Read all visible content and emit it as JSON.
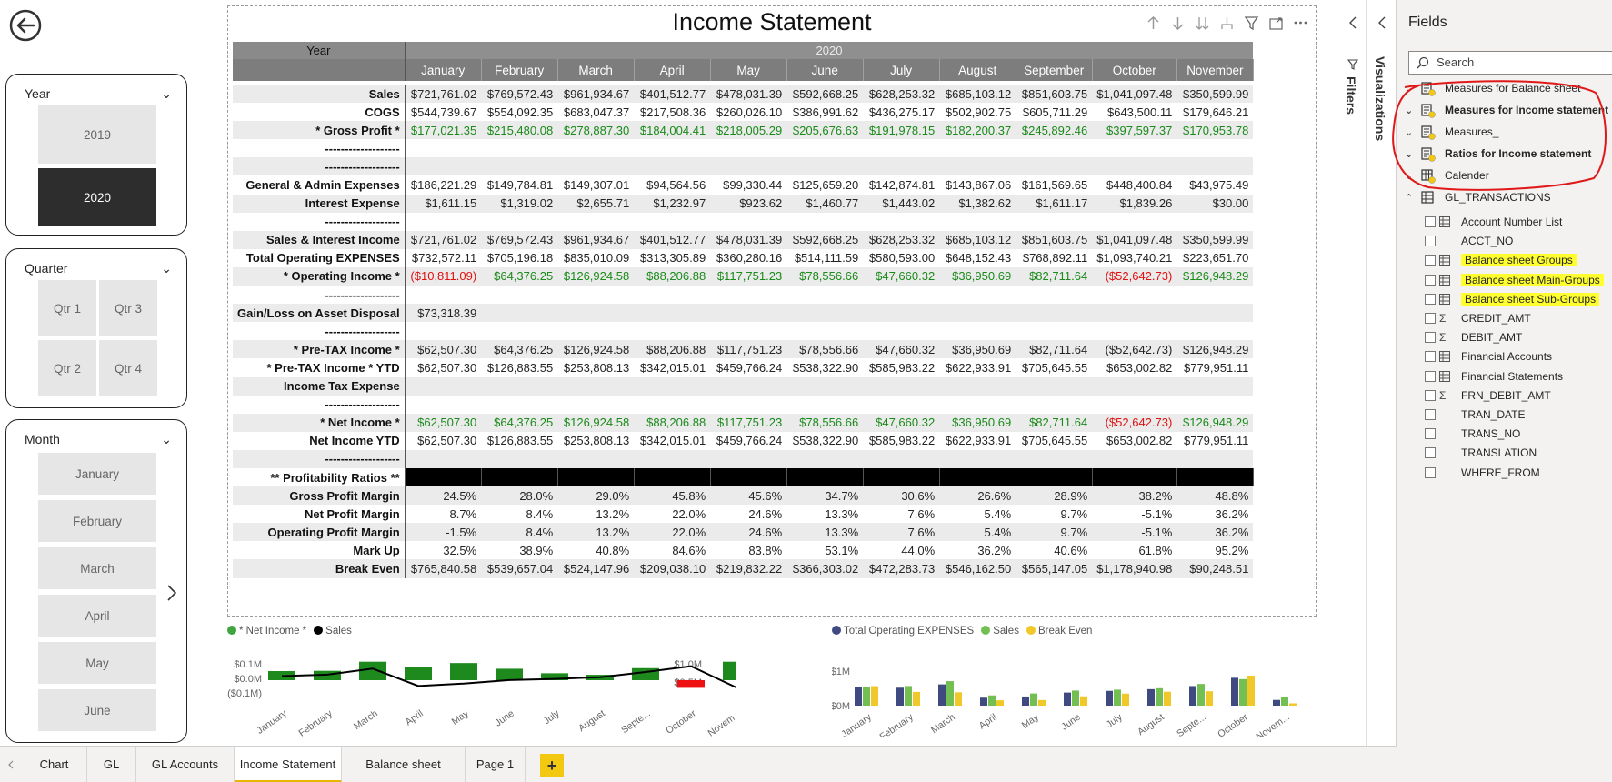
{
  "report": {
    "title": "Income Statement",
    "matrix": {
      "year_header": "Year",
      "year_value": "2020",
      "months": [
        "January",
        "February",
        "March",
        "April",
        "May",
        "June",
        "July",
        "August",
        "September",
        "October",
        "November"
      ],
      "rows": [
        {
          "label": "Sales",
          "style": "alt",
          "values": [
            "$721,761.02",
            "$769,572.43",
            "$961,934.67",
            "$401,512.77",
            "$478,031.39",
            "$592,668.25",
            "$628,253.32",
            "$685,103.12",
            "$851,603.75",
            "$1,041,097.48",
            "$350,599.99"
          ]
        },
        {
          "label": "COGS",
          "style": "",
          "values": [
            "$544,739.67",
            "$554,092.35",
            "$683,047.37",
            "$217,508.36",
            "$260,026.10",
            "$386,991.62",
            "$436,275.17",
            "$502,902.75",
            "$605,711.29",
            "$643,500.11",
            "$179,646.21"
          ]
        },
        {
          "label": "* Gross Profit *",
          "style": "alt",
          "color": "green",
          "values": [
            "$177,021.35",
            "$215,480.08",
            "$278,887.30",
            "$184,004.41",
            "$218,005.29",
            "$205,676.63",
            "$191,978.15",
            "$182,200.37",
            "$245,892.46",
            "$397,597.37",
            "$170,953.78"
          ]
        },
        {
          "label": "-------------------",
          "style": "",
          "values": [
            "",
            "",
            "",
            "",
            "",
            "",
            "",
            "",
            "",
            "",
            ""
          ]
        },
        {
          "label": "-------------------",
          "style": "alt",
          "values": [
            "",
            "",
            "",
            "",
            "",
            "",
            "",
            "",
            "",
            "",
            ""
          ]
        },
        {
          "label": "General & Admin Expenses",
          "style": "",
          "values": [
            "$186,221.29",
            "$149,784.81",
            "$149,307.01",
            "$94,564.56",
            "$99,330.44",
            "$125,659.20",
            "$142,874.81",
            "$143,867.06",
            "$161,569.65",
            "$448,400.84",
            "$43,975.49"
          ]
        },
        {
          "label": "Interest Expense",
          "style": "alt",
          "values": [
            "$1,611.15",
            "$1,319.02",
            "$2,655.71",
            "$1,232.97",
            "$923.62",
            "$1,460.77",
            "$1,443.02",
            "$1,382.62",
            "$1,611.17",
            "$1,839.26",
            "$30.00"
          ]
        },
        {
          "label": "-------------------",
          "style": "",
          "values": [
            "",
            "",
            "",
            "",
            "",
            "",
            "",
            "",
            "",
            "",
            ""
          ]
        },
        {
          "label": "Sales & Interest Income",
          "style": "alt",
          "values": [
            "$721,761.02",
            "$769,572.43",
            "$961,934.67",
            "$401,512.77",
            "$478,031.39",
            "$592,668.25",
            "$628,253.32",
            "$685,103.12",
            "$851,603.75",
            "$1,041,097.48",
            "$350,599.99"
          ]
        },
        {
          "label": "Total Operating EXPENSES",
          "style": "",
          "values": [
            "$732,572.11",
            "$705,196.18",
            "$835,010.09",
            "$313,305.89",
            "$360,280.16",
            "$514,111.59",
            "$580,593.00",
            "$648,152.43",
            "$768,892.11",
            "$1,093,740.21",
            "$223,651.70"
          ]
        },
        {
          "label": "* Operating Income *",
          "style": "alt",
          "color": "green",
          "neg": [
            0,
            9
          ],
          "values": [
            "($10,811.09)",
            "$64,376.25",
            "$126,924.58",
            "$88,206.88",
            "$117,751.23",
            "$78,556.66",
            "$47,660.32",
            "$36,950.69",
            "$82,711.64",
            "($52,642.73)",
            "$126,948.29"
          ]
        },
        {
          "label": "-------------------",
          "style": "",
          "values": [
            "",
            "",
            "",
            "",
            "",
            "",
            "",
            "",
            "",
            "",
            ""
          ]
        },
        {
          "label": "Gain/Loss on Asset Disposal",
          "style": "alt",
          "values": [
            "$73,318.39",
            "",
            "",
            "",
            "",
            "",
            "",
            "",
            "",
            "",
            ""
          ]
        },
        {
          "label": "-------------------",
          "style": "",
          "values": [
            "",
            "",
            "",
            "",
            "",
            "",
            "",
            "",
            "",
            "",
            ""
          ]
        },
        {
          "label": "* Pre-TAX Income *",
          "style": "alt",
          "values": [
            "$62,507.30",
            "$64,376.25",
            "$126,924.58",
            "$88,206.88",
            "$117,751.23",
            "$78,556.66",
            "$47,660.32",
            "$36,950.69",
            "$82,711.64",
            "($52,642.73)",
            "$126,948.29"
          ]
        },
        {
          "label": "* Pre-TAX Income * YTD",
          "style": "",
          "values": [
            "$62,507.30",
            "$126,883.55",
            "$253,808.13",
            "$342,015.01",
            "$459,766.24",
            "$538,322.90",
            "$585,983.22",
            "$622,933.91",
            "$705,645.55",
            "$653,002.82",
            "$779,951.11"
          ]
        },
        {
          "label": "Income Tax Expense",
          "style": "alt",
          "values": [
            "",
            "",
            "",
            "",
            "",
            "",
            "",
            "",
            "",
            "",
            ""
          ]
        },
        {
          "label": "-------------------",
          "style": "",
          "values": [
            "",
            "",
            "",
            "",
            "",
            "",
            "",
            "",
            "",
            "",
            ""
          ]
        },
        {
          "label": "* Net Income *",
          "style": "alt",
          "color": "green",
          "neg": [
            9
          ],
          "values": [
            "$62,507.30",
            "$64,376.25",
            "$126,924.58",
            "$88,206.88",
            "$117,751.23",
            "$78,556.66",
            "$47,660.32",
            "$36,950.69",
            "$82,711.64",
            "($52,642.73)",
            "$126,948.29"
          ]
        },
        {
          "label": "Net Income YTD",
          "style": "",
          "values": [
            "$62,507.30",
            "$126,883.55",
            "$253,808.13",
            "$342,015.01",
            "$459,766.24",
            "$538,322.90",
            "$585,983.22",
            "$622,933.91",
            "$705,645.55",
            "$653,002.82",
            "$779,951.11"
          ]
        },
        {
          "label": "-------------------",
          "style": "alt",
          "values": [
            "",
            "",
            "",
            "",
            "",
            "",
            "",
            "",
            "",
            "",
            ""
          ]
        },
        {
          "label": "** Profitability Ratios **",
          "style": "dark",
          "values": [
            "",
            "",
            "",
            "",
            "",
            "",
            "",
            "",
            "",
            "",
            ""
          ]
        },
        {
          "label": "Gross Profit Margin",
          "style": "alt",
          "values": [
            "24.5%",
            "28.0%",
            "29.0%",
            "45.8%",
            "45.6%",
            "34.7%",
            "30.6%",
            "26.6%",
            "28.9%",
            "38.2%",
            "48.8%"
          ]
        },
        {
          "label": "Net Profit Margin",
          "style": "",
          "values": [
            "8.7%",
            "8.4%",
            "13.2%",
            "22.0%",
            "24.6%",
            "13.3%",
            "7.6%",
            "5.4%",
            "9.7%",
            "-5.1%",
            "36.2%"
          ]
        },
        {
          "label": "Operating Profit Margin",
          "style": "alt",
          "values": [
            "-1.5%",
            "8.4%",
            "13.2%",
            "22.0%",
            "24.6%",
            "13.3%",
            "7.6%",
            "5.4%",
            "9.7%",
            "-5.1%",
            "36.2%"
          ]
        },
        {
          "label": "Mark Up",
          "style": "",
          "values": [
            "32.5%",
            "38.9%",
            "40.8%",
            "84.6%",
            "83.8%",
            "53.1%",
            "44.0%",
            "36.2%",
            "40.6%",
            "61.8%",
            "95.2%"
          ]
        },
        {
          "label": "Break Even",
          "style": "alt",
          "values": [
            "$765,840.58",
            "$539,657.04",
            "$524,147.96",
            "$209,038.10",
            "$219,832.22",
            "$366,303.02",
            "$472,283.73",
            "$546,162.50",
            "$565,147.05",
            "$1,178,940.98",
            "$90,248.51"
          ]
        }
      ]
    }
  },
  "slicers": {
    "year": {
      "title": "Year",
      "options": [
        "2019",
        "2020"
      ],
      "selected": "2020"
    },
    "quarter": {
      "title": "Quarter",
      "options": [
        "Qtr 1",
        "Qtr 3",
        "Qtr 2",
        "Qtr 4"
      ]
    },
    "month": {
      "title": "Month",
      "options": [
        "January",
        "February",
        "March",
        "April",
        "May",
        "June"
      ]
    }
  },
  "chart_data": [
    {
      "type": "bar",
      "legend": [
        "* Net Income *",
        "Sales"
      ],
      "categories": [
        "January",
        "February",
        "March",
        "April",
        "May",
        "June",
        "July",
        "August",
        "Septe...",
        "October",
        "Novem..."
      ],
      "series": [
        {
          "name": "* Net Income *",
          "color": "#1e8a1e",
          "negative_color": "#ee1111",
          "values": [
            0.0625,
            0.0644,
            0.1269,
            0.0882,
            0.1178,
            0.0786,
            0.0477,
            0.037,
            0.0827,
            -0.0526,
            0.1269
          ]
        },
        {
          "name": "Sales",
          "color": "#000000",
          "values": [
            0.722,
            0.77,
            0.962,
            0.402,
            0.478,
            0.593,
            0.628,
            0.685,
            0.852,
            1.041,
            0.351
          ]
        }
      ],
      "left_axis_ticks": [
        "$0.1M",
        "$0.0M",
        "($0.1M)"
      ],
      "right_axis_ticks": [
        "$1.0M",
        "$0.5M"
      ]
    },
    {
      "type": "bar",
      "legend": [
        "Total Operating EXPENSES",
        "Sales",
        "Break Even"
      ],
      "categories": [
        "January",
        "February",
        "March",
        "April",
        "May",
        "June",
        "July",
        "August",
        "Septe...",
        "October",
        "Novem..."
      ],
      "series": [
        {
          "name": "Total Operating EXPENSES",
          "color": "#3f4a80",
          "values": [
            0.733,
            0.705,
            0.835,
            0.313,
            0.36,
            0.514,
            0.581,
            0.648,
            0.769,
            1.094,
            0.224
          ]
        },
        {
          "name": "Sales",
          "color": "#73bf51",
          "values": [
            0.722,
            0.77,
            0.962,
            0.402,
            0.478,
            0.593,
            0.628,
            0.685,
            0.852,
            1.041,
            0.351
          ]
        },
        {
          "name": "Break Even",
          "color": "#f0c829",
          "values": [
            0.766,
            0.54,
            0.524,
            0.209,
            0.22,
            0.366,
            0.472,
            0.546,
            0.565,
            1.179,
            0.09
          ]
        }
      ],
      "axis_ticks": [
        "$1M",
        "$0M"
      ]
    }
  ],
  "panes": {
    "filters_label": "Filters",
    "visualizations_label": "Visualizations",
    "fields": {
      "title": "Fields",
      "search_placeholder": "Search",
      "tables": [
        {
          "name": "Measures for Balance sheet",
          "bold": false
        },
        {
          "name": "Measures for Income statement",
          "bold": true
        },
        {
          "name": "Measures_",
          "bold": false
        },
        {
          "name": "Ratios for Income statement",
          "bold": true
        },
        {
          "name": "Calender",
          "bold": false
        },
        {
          "name": "GL_TRANSACTIONS",
          "bold": false
        }
      ],
      "gl_fields": [
        {
          "name": "Account Number List",
          "icon": "hierarchy",
          "highlight": false
        },
        {
          "name": "ACCT_NO",
          "icon": "none",
          "highlight": false
        },
        {
          "name": "Balance sheet Groups",
          "icon": "hierarchy",
          "highlight": true
        },
        {
          "name": "Balance sheet Main-Groups",
          "icon": "hierarchy",
          "highlight": true
        },
        {
          "name": "Balance sheet Sub-Groups",
          "icon": "hierarchy",
          "highlight": true
        },
        {
          "name": "CREDIT_AMT",
          "icon": "sigma",
          "highlight": false
        },
        {
          "name": "DEBIT_AMT",
          "icon": "sigma",
          "highlight": false
        },
        {
          "name": "Financial Accounts",
          "icon": "hierarchy",
          "highlight": false
        },
        {
          "name": "Financial Statements",
          "icon": "hierarchy",
          "highlight": false
        },
        {
          "name": "FRN_DEBIT_AMT",
          "icon": "sigma",
          "highlight": false
        },
        {
          "name": "TRAN_DATE",
          "icon": "none",
          "highlight": false
        },
        {
          "name": "TRANS_NO",
          "icon": "none",
          "highlight": false
        },
        {
          "name": "TRANSLATION",
          "icon": "none",
          "highlight": false
        },
        {
          "name": "WHERE_FROM",
          "icon": "none",
          "highlight": false
        }
      ]
    }
  },
  "tabs": [
    "Chart",
    "GL",
    "GL Accounts",
    "Income Statement",
    "Balance sheet",
    "Page 1"
  ],
  "active_tab": "Income Statement",
  "add_tab_label": "+"
}
